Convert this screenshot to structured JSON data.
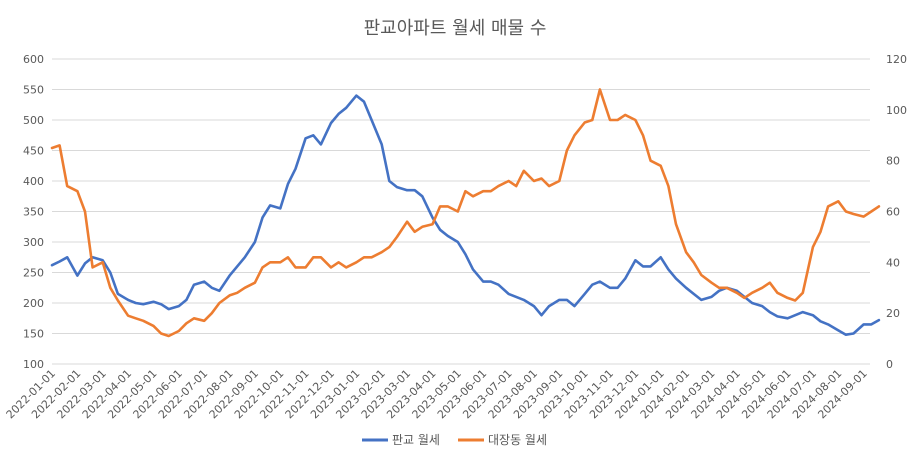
{
  "chart_data": {
    "type": "line",
    "title": "판교아파트 월세 매물 수",
    "x_tick_labels": [
      "2022-01-01",
      "2022-02-01",
      "2022-03-01",
      "2022-04-01",
      "2022-05-01",
      "2022-06-01",
      "2022-07-01",
      "2022-08-01",
      "2022-09-01",
      "2022-10-01",
      "2022-11-01",
      "2022-12-01",
      "2023-01-01",
      "2023-02-01",
      "2023-03-01",
      "2023-04-01",
      "2023-05-01",
      "2023-06-01",
      "2023-07-01",
      "2023-08-01",
      "2023-09-01",
      "2023-10-01",
      "2023-11-01",
      "2023-12-01",
      "2024-01-01",
      "2024-02-01",
      "2024-03-01",
      "2024-04-01",
      "2024-05-01",
      "2024-06-01",
      "2024-07-01",
      "2024-08-01",
      "2024-09-01"
    ],
    "y_left": {
      "min": 100,
      "max": 600,
      "step": 50,
      "ticks": [
        "100",
        "150",
        "200",
        "250",
        "300",
        "350",
        "400",
        "450",
        "500",
        "550",
        "600"
      ]
    },
    "y_right": {
      "min": 0,
      "max": 120,
      "step": 20,
      "ticks": [
        "0",
        "20",
        "40",
        "60",
        "80",
        "100",
        "120"
      ]
    },
    "grid": "horizontal",
    "legend_position": "bottom",
    "series": [
      {
        "name": "판교 월세",
        "axis": "left",
        "color": "#4472C4",
        "x_months": [
          0,
          0.3,
          0.6,
          1,
          1.3,
          1.6,
          2,
          2.3,
          2.6,
          3,
          3.3,
          3.6,
          4,
          4.3,
          4.6,
          5,
          5.3,
          5.6,
          6,
          6.3,
          6.6,
          7,
          7.3,
          7.6,
          8,
          8.3,
          8.6,
          9,
          9.3,
          9.6,
          10,
          10.3,
          10.6,
          11,
          11.3,
          11.6,
          12,
          12.3,
          12.6,
          13,
          13.3,
          13.6,
          14,
          14.3,
          14.6,
          15,
          15.3,
          15.6,
          16,
          16.3,
          16.6,
          17,
          17.3,
          17.6,
          18,
          18.3,
          18.6,
          19,
          19.3,
          19.6,
          20,
          20.3,
          20.6,
          21,
          21.3,
          21.6,
          22,
          22.3,
          22.6,
          23,
          23.3,
          23.6,
          24,
          24.3,
          24.6,
          25,
          25.3,
          25.6,
          26,
          26.3,
          26.6,
          27,
          27.3,
          27.6,
          28,
          28.3,
          28.6,
          29,
          29.3,
          29.6,
          30,
          30.3,
          30.6,
          31,
          31.3,
          31.6,
          32,
          32.3,
          32.6
        ],
        "values": [
          262,
          268,
          275,
          245,
          265,
          275,
          270,
          250,
          215,
          205,
          200,
          198,
          202,
          198,
          190,
          195,
          205,
          230,
          235,
          225,
          220,
          245,
          260,
          275,
          300,
          340,
          360,
          355,
          395,
          420,
          470,
          475,
          460,
          495,
          510,
          520,
          540,
          530,
          500,
          460,
          400,
          390,
          385,
          385,
          375,
          340,
          320,
          310,
          300,
          280,
          255,
          235,
          235,
          230,
          215,
          210,
          205,
          195,
          180,
          195,
          205,
          205,
          195,
          215,
          230,
          235,
          225,
          225,
          240,
          270,
          260,
          260,
          275,
          255,
          240,
          225,
          215,
          205,
          210,
          220,
          225,
          220,
          210,
          200,
          195,
          185,
          178,
          175,
          180,
          185,
          180,
          170,
          165,
          155,
          148,
          150,
          165,
          165,
          172
        ]
      },
      {
        "name": "대장동 월세",
        "axis": "right",
        "color": "#ED7D31",
        "x_months": [
          0,
          0.3,
          0.6,
          1,
          1.3,
          1.6,
          2,
          2.3,
          2.6,
          3,
          3.3,
          3.6,
          4,
          4.3,
          4.6,
          5,
          5.3,
          5.6,
          6,
          6.3,
          6.6,
          7,
          7.3,
          7.6,
          8,
          8.3,
          8.6,
          9,
          9.3,
          9.6,
          10,
          10.3,
          10.6,
          11,
          11.3,
          11.6,
          12,
          12.3,
          12.6,
          13,
          13.3,
          13.6,
          14,
          14.3,
          14.6,
          15,
          15.3,
          15.6,
          16,
          16.3,
          16.6,
          17,
          17.3,
          17.6,
          18,
          18.3,
          18.6,
          19,
          19.3,
          19.6,
          20,
          20.3,
          20.6,
          21,
          21.3,
          21.6,
          22,
          22.3,
          22.6,
          23,
          23.3,
          23.6,
          24,
          24.3,
          24.6,
          25,
          25.3,
          25.6,
          26,
          26.3,
          26.6,
          27,
          27.3,
          27.6,
          28,
          28.3,
          28.6,
          29,
          29.3,
          29.6,
          30,
          30.3,
          30.6,
          31,
          31.3,
          31.6,
          32,
          32.3,
          32.6
        ],
        "values": [
          85,
          86,
          70,
          68,
          60,
          38,
          40,
          30,
          25,
          19,
          18,
          17,
          15,
          12,
          11,
          13,
          16,
          18,
          17,
          20,
          24,
          27,
          28,
          30,
          32,
          38,
          40,
          40,
          42,
          38,
          38,
          42,
          42,
          38,
          40,
          38,
          40,
          42,
          42,
          44,
          46,
          50,
          56,
          52,
          54,
          55,
          62,
          62,
          60,
          68,
          66,
          68,
          68,
          70,
          72,
          70,
          76,
          72,
          73,
          70,
          72,
          84,
          90,
          95,
          96,
          108,
          96,
          96,
          98,
          96,
          90,
          80,
          78,
          70,
          55,
          44,
          40,
          35,
          32,
          30,
          30,
          28,
          26,
          28,
          30,
          32,
          28,
          26,
          25,
          28,
          46,
          52,
          62,
          64,
          60,
          59,
          58,
          60,
          62
        ]
      }
    ],
    "legend": [
      "판교 월세",
      "대장동 월세"
    ]
  }
}
